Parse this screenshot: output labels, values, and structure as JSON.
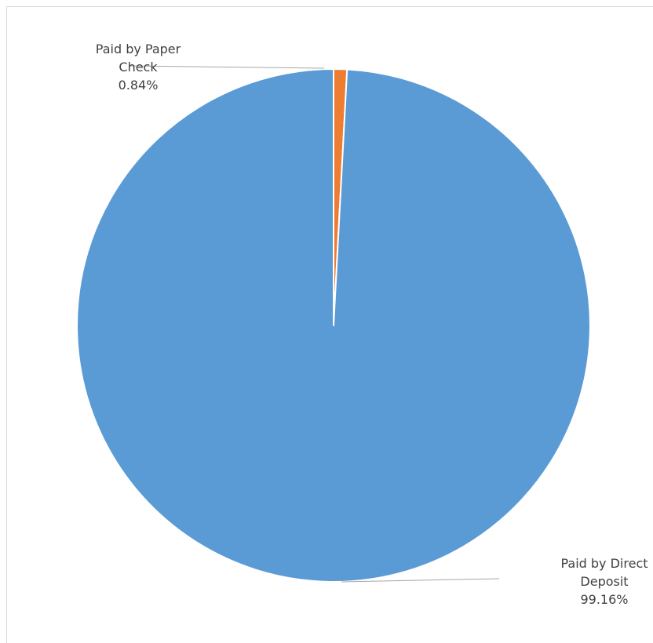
{
  "chart_data": {
    "type": "pie",
    "categories": [
      "Paid by Paper Check",
      "Paid by Direct Deposit"
    ],
    "values": [
      0.84,
      99.16
    ],
    "colors": [
      "#ED7D31",
      "#5B9BD5"
    ],
    "start_angle_deg": 0,
    "direction": "clockwise",
    "data_labels": [
      {
        "lines": [
          "Paid by Paper",
          "Check",
          "0.84%"
        ],
        "anchor": "end",
        "placement": "outside-top-left"
      },
      {
        "lines": [
          "Paid by Direct",
          "Deposit",
          "99.16%"
        ],
        "anchor": "end",
        "placement": "outside-bottom-right"
      }
    ],
    "title": "",
    "legend": "none"
  }
}
